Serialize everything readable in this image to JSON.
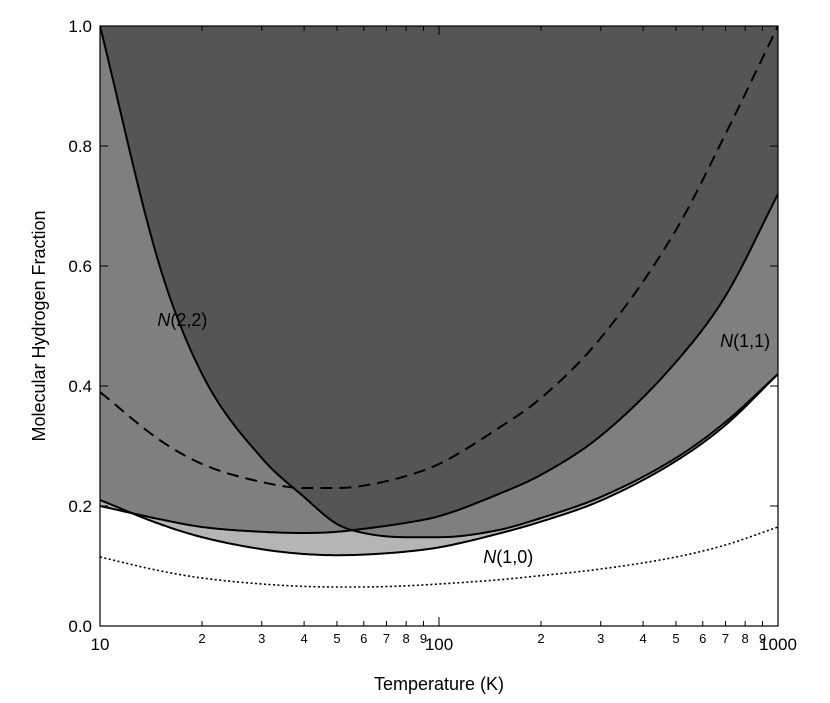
{
  "chart_data": {
    "type": "area",
    "xlabel": "Temperature (K)",
    "ylabel": "Molecular Hydrogen Fraction",
    "xscale": "log",
    "xlim": [
      10,
      1000
    ],
    "ylim": [
      0.0,
      1.0
    ],
    "grid": false,
    "x_tick_labels": [
      "10",
      "100",
      "1000"
    ],
    "x_minor_tick_labels": [
      "2",
      "3",
      "4",
      "5",
      "6",
      "7",
      "8",
      "9"
    ],
    "y_tick_labels": [
      "0.0",
      "0.2",
      "0.4",
      "0.6",
      "0.8",
      "1.0"
    ],
    "y_ticks": [
      0.0,
      0.2,
      0.4,
      0.6,
      0.8,
      1.0
    ],
    "x_major_ticks": [
      10,
      100,
      1000
    ],
    "x_minor_ticks": [
      20,
      30,
      40,
      50,
      60,
      70,
      80,
      90,
      200,
      300,
      400,
      500,
      600,
      700,
      800,
      900
    ],
    "x": [
      10,
      15,
      20,
      30,
      40,
      50,
      60,
      80,
      100,
      150,
      200,
      300,
      500,
      700,
      1000
    ],
    "series": [
      {
        "name": "N(2,2)",
        "style": "solid",
        "values": [
          1.0,
          0.6,
          0.42,
          0.28,
          0.215,
          0.17,
          0.155,
          0.148,
          0.148,
          0.16,
          0.18,
          0.215,
          0.28,
          0.34,
          0.42
        ]
      },
      {
        "name": "N(1,1)",
        "style": "solid",
        "values": [
          0.2,
          0.178,
          0.165,
          0.157,
          0.155,
          0.157,
          0.162,
          0.172,
          0.183,
          0.22,
          0.252,
          0.317,
          0.44,
          0.55,
          0.72
        ]
      },
      {
        "name": "N(1,0)",
        "style": "solid",
        "values": [
          0.21,
          0.17,
          0.148,
          0.128,
          0.12,
          0.118,
          0.119,
          0.124,
          0.131,
          0.154,
          0.174,
          0.209,
          0.275,
          0.335,
          0.42
        ]
      },
      {
        "style": "dashed",
        "values": [
          0.39,
          0.31,
          0.27,
          0.24,
          0.23,
          0.23,
          0.234,
          0.25,
          0.27,
          0.33,
          0.38,
          0.48,
          0.66,
          0.82,
          1.0
        ]
      },
      {
        "style": "dotted",
        "values": [
          0.115,
          0.092,
          0.08,
          0.07,
          0.066,
          0.065,
          0.065,
          0.067,
          0.07,
          0.077,
          0.084,
          0.095,
          0.115,
          0.135,
          0.165
        ]
      }
    ],
    "regions": [
      {
        "between": [
          "max(N(2,2), N(1,1))",
          1.0
        ],
        "color": "#555555"
      },
      {
        "between": [
          "max(N(1,0), min(N(2,2), N(1,1)))",
          "max(N(2,2), N(1,1))"
        ],
        "color": "#7f7f7f"
      },
      {
        "between": [
          "N(1,0)",
          "min(N(2,2), N(1,1))"
        ],
        "color": "#b5b5b5"
      }
    ],
    "annotations": [
      {
        "prefix": "N",
        "suffix": "(2,2)",
        "x": 17.5,
        "y": 0.5
      },
      {
        "prefix": "N",
        "suffix": "(1,1)",
        "x": 800,
        "y": 0.465
      },
      {
        "prefix": "N",
        "suffix": "(1,0)",
        "x": 160,
        "y": 0.105
      }
    ]
  }
}
